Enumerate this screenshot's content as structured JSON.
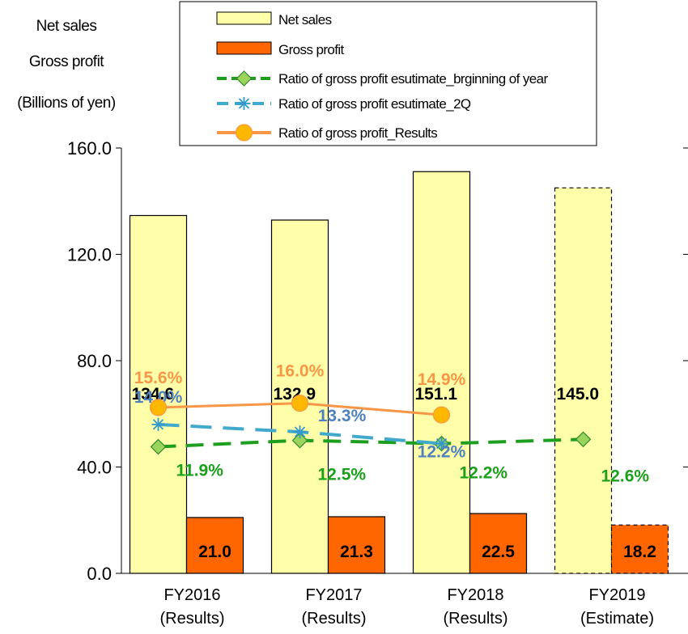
{
  "y_axis_title": {
    "line1": "Net sales",
    "line2": "Gross profit",
    "line3": "(Billions of yen)"
  },
  "chart_data": {
    "type": "bar",
    "categories": [
      [
        "FY2016",
        "(Results)"
      ],
      [
        "FY2017",
        "(Results)"
      ],
      [
        "FY2018",
        "(Results)"
      ],
      [
        "FY2019",
        "(Estimate)"
      ]
    ],
    "ylim": [
      0,
      160
    ],
    "yticks": [
      0,
      40,
      80,
      120,
      160
    ],
    "ytick_labels": [
      "0.0",
      "40.0",
      "80.0",
      "120.0",
      "160.0"
    ],
    "grid": false,
    "legend_position": "top",
    "series": [
      {
        "name": "Net sales",
        "kind": "bar",
        "values": [
          134.6,
          132.9,
          151.1,
          145.0
        ],
        "labels": [
          "134.6",
          "132.9",
          "151.1",
          "145.0"
        ],
        "color": "#FFFFAA",
        "estimate_dashed": [
          false,
          false,
          false,
          true
        ]
      },
      {
        "name": "Gross profit",
        "kind": "bar",
        "values": [
          21.0,
          21.3,
          22.5,
          18.2
        ],
        "labels": [
          "21.0",
          "21.3",
          "22.5",
          "18.2"
        ],
        "color": "#FF6600",
        "estimate_dashed": [
          false,
          false,
          false,
          true
        ]
      },
      {
        "name": "Ratio of gross profit esutimate_brginning of year",
        "kind": "line",
        "values": [
          11.9,
          12.5,
          12.2,
          12.6
        ],
        "labels": [
          "11.9%",
          "12.5%",
          "12.2%",
          "12.6%"
        ],
        "color": "#1E9E1E",
        "label_color": "#1AA01A"
      },
      {
        "name": "Ratio of gross profit esutimate_2Q",
        "kind": "line",
        "values": [
          14.0,
          13.3,
          12.2,
          null
        ],
        "labels": [
          "14.0%",
          "13.3%",
          "12.2%",
          null
        ],
        "color": "#41AACC",
        "label_color": "#4F81BD"
      },
      {
        "name": "Ratio of gross profit_Results",
        "kind": "line",
        "values": [
          15.6,
          16.0,
          14.9,
          null
        ],
        "labels": [
          "15.6%",
          "16.0%",
          "14.9%",
          null
        ],
        "color": "#F79646",
        "label_color": "#F79646"
      }
    ]
  }
}
